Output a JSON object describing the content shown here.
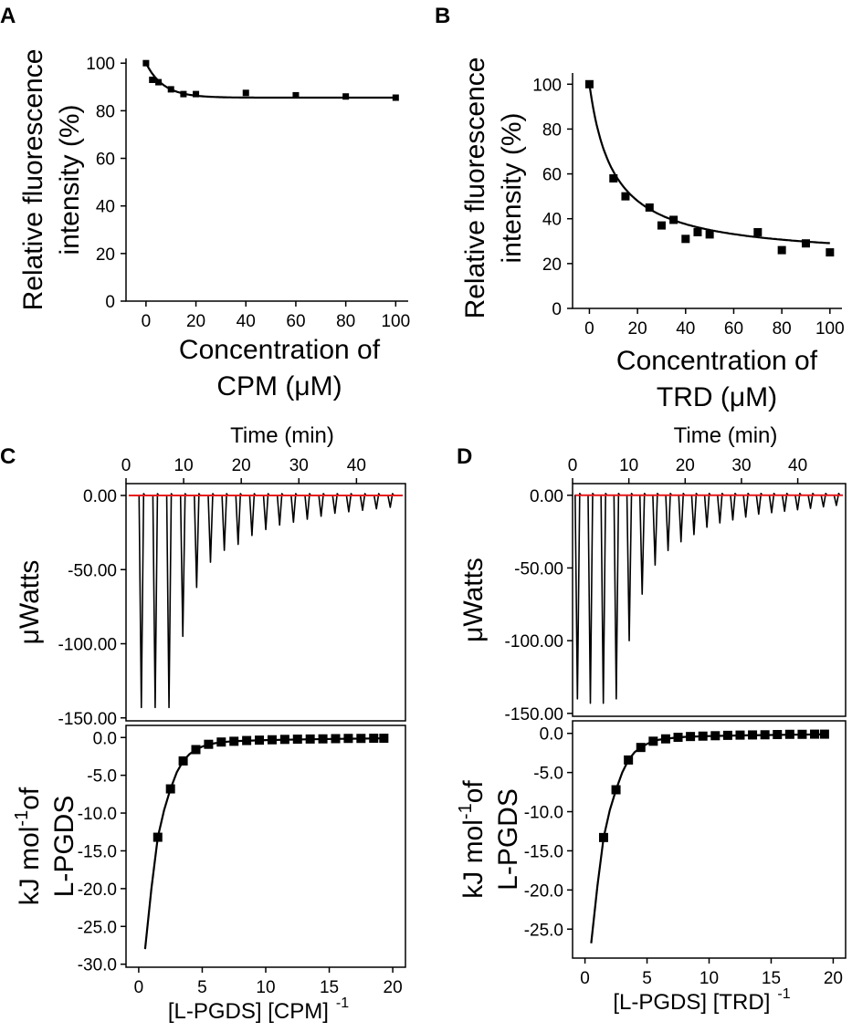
{
  "chart_data": [
    {
      "panel": "A",
      "type": "scatter",
      "xlabel_lines": [
        "Concentration of",
        "CPM (μM)"
      ],
      "ylabel_lines": [
        "Relative fluorescence",
        "intensity (%)"
      ],
      "xlim": [
        -8,
        105
      ],
      "ylim": [
        0,
        102
      ],
      "xticks": [
        0,
        20,
        40,
        60,
        80,
        100
      ],
      "yticks": [
        0,
        20,
        40,
        60,
        80,
        100
      ],
      "points": [
        [
          0,
          100
        ],
        [
          2.5,
          93
        ],
        [
          5,
          92
        ],
        [
          10,
          89
        ],
        [
          15,
          87
        ],
        [
          20,
          87
        ],
        [
          40,
          87.5
        ],
        [
          60,
          86.5
        ],
        [
          80,
          86
        ],
        [
          100,
          85.5
        ]
      ],
      "fit": {
        "model": "exponential_decay",
        "y0": 85.5,
        "A": 14.5,
        "t": 7
      }
    },
    {
      "panel": "B",
      "type": "scatter",
      "xlabel_lines": [
        "Concentration of",
        "TRD (μM)"
      ],
      "ylabel_lines": [
        "Relative fluorescence",
        "intensity (%)"
      ],
      "xlim": [
        -7,
        105
      ],
      "ylim": [
        0,
        105
      ],
      "xticks": [
        0,
        20,
        40,
        60,
        80,
        100
      ],
      "yticks": [
        0,
        20,
        40,
        60,
        80,
        100
      ],
      "points": [
        [
          0,
          100
        ],
        [
          10,
          58
        ],
        [
          15,
          50
        ],
        [
          25,
          45
        ],
        [
          30,
          37
        ],
        [
          35,
          39.5
        ],
        [
          40,
          31
        ],
        [
          45,
          34
        ],
        [
          50,
          33
        ],
        [
          70,
          34
        ],
        [
          80,
          26
        ],
        [
          90,
          29
        ],
        [
          100,
          25
        ]
      ],
      "fit": {
        "model": "hyperbolic_decay",
        "y_inf": 22,
        "A": 78,
        "k": 10
      }
    },
    {
      "panel": "C",
      "type": "line",
      "ligand": "CPM",
      "top": {
        "title": "Time (min)",
        "ylabel": "μWatts",
        "xlim": [
          0,
          48.5
        ],
        "ylim": [
          -152,
          8
        ],
        "xticks": [
          0,
          10,
          20,
          30,
          40
        ],
        "yticks": [
          0,
          -50,
          -100,
          -150
        ],
        "ytick_labels": [
          "0.00",
          "-50.00",
          "-100.00",
          "-150.00"
        ],
        "baseline": 0,
        "injection_times_min": [
          2.5,
          4.9,
          7.3,
          9.7,
          12.1,
          14.5,
          16.9,
          19.3,
          21.7,
          24.1,
          26.5,
          28.9,
          31.3,
          33.7,
          36.1,
          38.5,
          40.9,
          43.3,
          45.7
        ],
        "peak_heats": [
          -143,
          -143,
          -143,
          -95,
          -62,
          -45,
          -37,
          -33,
          -27,
          -23,
          -20,
          -18,
          -16,
          -14,
          -12,
          -11,
          -10,
          -9,
          -8
        ]
      },
      "bottom": {
        "ylabel_lines": [
          "kJ mol",
          "-1",
          "of",
          "L-PGDS"
        ],
        "xlabel": "[L-PGDS] [CPM]",
        "xlabel_sup": "-1",
        "xlim": [
          -1,
          21
        ],
        "ylim": [
          -30.4,
          1.6
        ],
        "xticks": [
          0,
          5,
          10,
          15,
          20
        ],
        "yticks": [
          0,
          -5,
          -10,
          -15,
          -20,
          -25,
          -30
        ],
        "ytick_labels": [
          "0.0",
          "-5.0",
          "-10.0",
          "-15.0",
          "-20.0",
          "-25.0",
          "-30.0"
        ],
        "points": [
          [
            1.5,
            -13.2
          ],
          [
            2.5,
            -6.8
          ],
          [
            3.5,
            -3.1
          ],
          [
            4.5,
            -1.6
          ],
          [
            5.5,
            -0.9
          ],
          [
            6.5,
            -0.6
          ],
          [
            7.5,
            -0.5
          ],
          [
            8.5,
            -0.4
          ],
          [
            9.5,
            -0.35
          ],
          [
            10.5,
            -0.3
          ],
          [
            11.5,
            -0.25
          ],
          [
            12.5,
            -0.22
          ],
          [
            13.5,
            -0.2
          ],
          [
            14.5,
            -0.18
          ],
          [
            15.5,
            -0.15
          ],
          [
            16.5,
            -0.12
          ],
          [
            17.5,
            -0.12
          ],
          [
            18.5,
            -0.1
          ],
          [
            19.3,
            -0.1
          ]
        ],
        "fit": [
          [
            0.5,
            -28.0
          ],
          [
            1.0,
            -20.0
          ],
          [
            1.5,
            -13.2
          ],
          [
            2.0,
            -9.6
          ],
          [
            2.5,
            -6.8
          ],
          [
            3.0,
            -4.6
          ],
          [
            3.5,
            -3.1
          ],
          [
            4.0,
            -2.2
          ],
          [
            4.5,
            -1.6
          ],
          [
            5.0,
            -1.2
          ],
          [
            5.5,
            -0.95
          ],
          [
            6.0,
            -0.75
          ],
          [
            7.0,
            -0.55
          ],
          [
            8.0,
            -0.45
          ],
          [
            10.0,
            -0.35
          ],
          [
            13.0,
            -0.25
          ],
          [
            16.0,
            -0.18
          ],
          [
            19.3,
            -0.12
          ]
        ]
      }
    },
    {
      "panel": "D",
      "type": "line",
      "ligand": "TRD",
      "top": {
        "title": "Time (min)",
        "ylabel": "μWatts",
        "xlim": [
          0,
          48.5
        ],
        "ylim": [
          -152,
          8
        ],
        "xticks": [
          0,
          10,
          20,
          30,
          40
        ],
        "yticks": [
          0,
          -50,
          -100,
          -150
        ],
        "ytick_labels": [
          "0.00",
          "-50.00",
          "-100.00",
          "-150.00"
        ],
        "baseline": 0,
        "injection_times_min": [
          0.7,
          3.0,
          5.3,
          7.6,
          9.9,
          12.2,
          14.5,
          16.8,
          19.1,
          21.4,
          23.7,
          26.0,
          28.3,
          30.6,
          32.9,
          35.2,
          37.5,
          39.8,
          42.1,
          44.4,
          46.7
        ],
        "peak_heats": [
          -140,
          -143,
          -143,
          -140,
          -100,
          -68,
          -48,
          -38,
          -32,
          -27,
          -22,
          -19,
          -17,
          -15,
          -13,
          -12,
          -11,
          -10,
          -9,
          -8,
          -7
        ]
      },
      "bottom": {
        "ylabel_lines": [
          "kJ mol",
          "-1",
          "of",
          "L-PGDS"
        ],
        "xlabel": "[L-PGDS] [TRD]",
        "xlabel_sup": "-1",
        "xlim": [
          -1,
          21
        ],
        "ylim": [
          -28.7,
          1.6
        ],
        "xticks": [
          0,
          5,
          10,
          15,
          20
        ],
        "yticks": [
          0,
          -5,
          -10,
          -15,
          -20,
          -25
        ],
        "ytick_labels": [
          "0.0",
          "-5.0",
          "-10.0",
          "-15.0",
          "-20.0",
          "-25.0"
        ],
        "points": [
          [
            1.5,
            -13.3
          ],
          [
            2.5,
            -7.2
          ],
          [
            3.5,
            -3.4
          ],
          [
            4.5,
            -1.8
          ],
          [
            5.5,
            -1.0
          ],
          [
            6.5,
            -0.7
          ],
          [
            7.5,
            -0.5
          ],
          [
            8.5,
            -0.4
          ],
          [
            9.5,
            -0.35
          ],
          [
            10.5,
            -0.3
          ],
          [
            11.5,
            -0.25
          ],
          [
            12.5,
            -0.22
          ],
          [
            13.5,
            -0.2
          ],
          [
            14.5,
            -0.18
          ],
          [
            15.5,
            -0.15
          ],
          [
            16.5,
            -0.12
          ],
          [
            17.5,
            -0.12
          ],
          [
            18.5,
            -0.1
          ],
          [
            19.3,
            -0.1
          ]
        ],
        "fit": [
          [
            0.5,
            -26.8
          ],
          [
            1.0,
            -19.5
          ],
          [
            1.5,
            -13.3
          ],
          [
            2.0,
            -9.8
          ],
          [
            2.5,
            -7.2
          ],
          [
            3.0,
            -5.0
          ],
          [
            3.5,
            -3.4
          ],
          [
            4.0,
            -2.4
          ],
          [
            4.5,
            -1.8
          ],
          [
            5.0,
            -1.35
          ],
          [
            5.5,
            -1.0
          ],
          [
            6.0,
            -0.8
          ],
          [
            7.0,
            -0.6
          ],
          [
            8.0,
            -0.45
          ],
          [
            10.0,
            -0.35
          ],
          [
            13.0,
            -0.25
          ],
          [
            16.0,
            -0.18
          ],
          [
            19.3,
            -0.12
          ]
        ]
      }
    }
  ]
}
